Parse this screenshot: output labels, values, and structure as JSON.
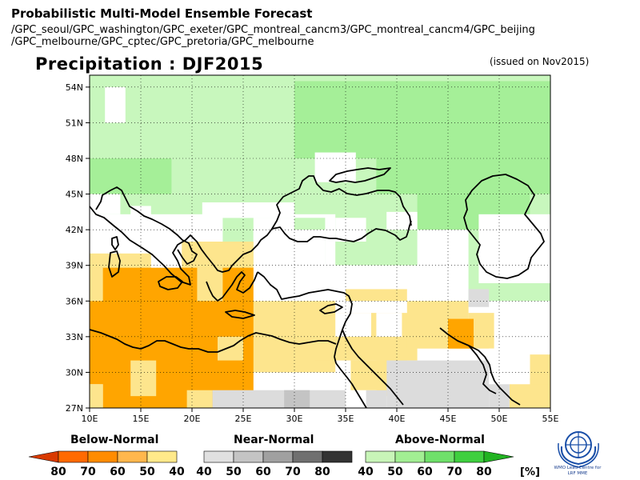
{
  "header": {
    "title": "Probabilistic Multi-Model Ensemble Forecast",
    "models_line1": "/GPC_seoul/GPC_washington/GPC_exeter/GPC_montreal_cancm3/GPC_montreal_cancm4/GPC_beijing",
    "models_line2": "/GPC_melbourne/GPC_cptec/GPC_pretoria/GPC_melbourne"
  },
  "map": {
    "variable_title": "Precipitation : DJF2015",
    "issued": "(issued on Nov2015)",
    "lon_ticks": [
      "10E",
      "15E",
      "20E",
      "25E",
      "30E",
      "35E",
      "40E",
      "45E",
      "50E",
      "55E"
    ],
    "lat_ticks": [
      "27N",
      "30N",
      "33N",
      "36N",
      "39N",
      "42N",
      "45N",
      "48N",
      "51N",
      "54N"
    ],
    "lon_range": [
      10,
      55
    ],
    "lat_range": [
      27,
      55
    ]
  },
  "legend": {
    "below": {
      "label": "Below-Normal",
      "ticks": [
        "80",
        "70",
        "60",
        "50",
        "40"
      ],
      "colors": [
        "#d93a00",
        "#ff6a00",
        "#ff8c00",
        "#ffb74d",
        "#ffe98a"
      ]
    },
    "near": {
      "label": "Near-Normal",
      "ticks": [
        "40",
        "50",
        "60",
        "70",
        "80"
      ],
      "colors": [
        "#e0e0e0",
        "#c4c4c4",
        "#a0a0a0",
        "#707070",
        "#333333"
      ]
    },
    "above": {
      "label": "Above-Normal",
      "ticks": [
        "40",
        "50",
        "60",
        "70",
        "80"
      ],
      "colors": [
        "#c8f5b8",
        "#a2ee93",
        "#6fe06a",
        "#3fcf3f",
        "#22b322"
      ]
    },
    "unit": "[%]"
  },
  "logo": {
    "text": "WMO Lead Centre for LRF MME"
  },
  "colors": {
    "below_40": "#fde58d",
    "below_50": "#ffa500",
    "near_40": "#dcdcdc",
    "near_50": "#c4c4c4",
    "above_40": "#c8f7bd",
    "above_50": "#a5ef98"
  }
}
